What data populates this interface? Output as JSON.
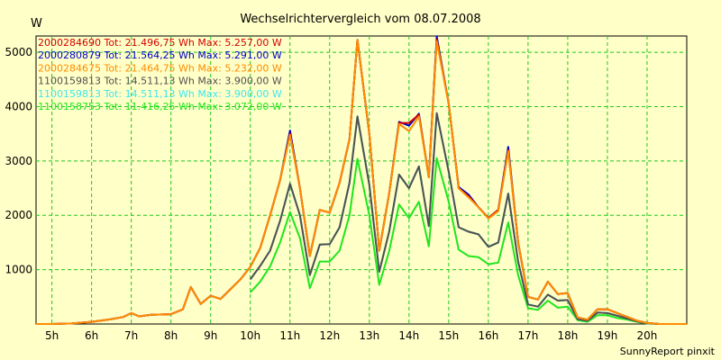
{
  "chart_data": {
    "type": "line",
    "title": "Wechselrichtervergleich vom 08.07.2008",
    "ylabel": "W",
    "xlabel": "",
    "footer": "SunnyReport pinxit",
    "x_tick_labels": [
      "5h",
      "6h",
      "7h",
      "8h",
      "9h",
      "10h",
      "11h",
      "12h",
      "13h",
      "14h",
      "15h",
      "16h",
      "17h",
      "18h",
      "19h",
      "20h"
    ],
    "xlim": [
      4.6,
      21.0
    ],
    "ylim": [
      0,
      5300
    ],
    "y_ticks": [
      1000,
      2000,
      3000,
      4000,
      5000
    ],
    "grid": true,
    "legend_position": "top-left",
    "series": [
      {
        "name": "2000284690 Tot: 21.496,75 Wh Max: 5.257,00 W",
        "color": "#d40000",
        "points": [
          [
            4.6,
            0
          ],
          [
            5.0,
            0
          ],
          [
            5.5,
            10
          ],
          [
            6.0,
            40
          ],
          [
            6.5,
            90
          ],
          [
            6.8,
            130
          ],
          [
            7.0,
            200
          ],
          [
            7.2,
            140
          ],
          [
            7.5,
            170
          ],
          [
            8.0,
            180
          ],
          [
            8.3,
            270
          ],
          [
            8.5,
            680
          ],
          [
            8.75,
            370
          ],
          [
            9.0,
            520
          ],
          [
            9.25,
            460
          ],
          [
            9.5,
            640
          ],
          [
            9.75,
            820
          ],
          [
            10.0,
            1050
          ],
          [
            10.25,
            1400
          ],
          [
            10.5,
            2000
          ],
          [
            10.75,
            2650
          ],
          [
            11.0,
            3500
          ],
          [
            11.25,
            2500
          ],
          [
            11.5,
            1250
          ],
          [
            11.75,
            2100
          ],
          [
            12.0,
            2050
          ],
          [
            12.25,
            2600
          ],
          [
            12.5,
            3400
          ],
          [
            12.7,
            5230
          ],
          [
            13.0,
            3500
          ],
          [
            13.25,
            1350
          ],
          [
            13.5,
            2400
          ],
          [
            13.75,
            3700
          ],
          [
            14.0,
            3700
          ],
          [
            14.25,
            3850
          ],
          [
            14.5,
            2700
          ],
          [
            14.7,
            5240
          ],
          [
            15.0,
            4050
          ],
          [
            15.25,
            2500
          ],
          [
            15.5,
            2350
          ],
          [
            15.75,
            2150
          ],
          [
            16.0,
            1950
          ],
          [
            16.25,
            2100
          ],
          [
            16.5,
            3200
          ],
          [
            16.75,
            1500
          ],
          [
            17.0,
            500
          ],
          [
            17.25,
            450
          ],
          [
            17.5,
            780
          ],
          [
            17.75,
            550
          ],
          [
            18.0,
            570
          ],
          [
            18.25,
            120
          ],
          [
            18.5,
            80
          ],
          [
            18.75,
            270
          ],
          [
            19.0,
            270
          ],
          [
            19.25,
            200
          ],
          [
            19.5,
            130
          ],
          [
            19.75,
            60
          ],
          [
            20.0,
            20
          ],
          [
            20.3,
            0
          ],
          [
            21.0,
            0
          ]
        ]
      },
      {
        "name": "2000280879 Tot: 21.564,25 Wh Max: 5.291,00 W",
        "color": "#0000c8",
        "points": [
          [
            4.6,
            0
          ],
          [
            5.0,
            0
          ],
          [
            5.5,
            10
          ],
          [
            6.0,
            40
          ],
          [
            6.5,
            90
          ],
          [
            6.8,
            130
          ],
          [
            7.0,
            200
          ],
          [
            7.2,
            140
          ],
          [
            7.5,
            170
          ],
          [
            8.0,
            180
          ],
          [
            8.3,
            270
          ],
          [
            8.5,
            680
          ],
          [
            8.75,
            370
          ],
          [
            9.0,
            520
          ],
          [
            9.25,
            460
          ],
          [
            9.5,
            640
          ],
          [
            9.75,
            820
          ],
          [
            10.0,
            1050
          ],
          [
            10.25,
            1400
          ],
          [
            10.5,
            2000
          ],
          [
            10.75,
            2650
          ],
          [
            11.0,
            3560
          ],
          [
            11.25,
            2500
          ],
          [
            11.5,
            1250
          ],
          [
            11.75,
            2100
          ],
          [
            12.0,
            2050
          ],
          [
            12.25,
            2600
          ],
          [
            12.5,
            3400
          ],
          [
            12.7,
            5230
          ],
          [
            13.0,
            3500
          ],
          [
            13.25,
            1350
          ],
          [
            13.5,
            2400
          ],
          [
            13.75,
            3720
          ],
          [
            14.0,
            3650
          ],
          [
            14.25,
            3870
          ],
          [
            14.5,
            2700
          ],
          [
            14.7,
            5290
          ],
          [
            15.0,
            4050
          ],
          [
            15.25,
            2520
          ],
          [
            15.5,
            2380
          ],
          [
            15.75,
            2150
          ],
          [
            16.0,
            1950
          ],
          [
            16.25,
            2100
          ],
          [
            16.5,
            3260
          ],
          [
            16.75,
            1500
          ],
          [
            17.0,
            500
          ],
          [
            17.25,
            450
          ],
          [
            17.5,
            780
          ],
          [
            17.75,
            550
          ],
          [
            18.0,
            570
          ],
          [
            18.25,
            120
          ],
          [
            18.5,
            80
          ],
          [
            18.75,
            270
          ],
          [
            19.0,
            270
          ],
          [
            19.25,
            200
          ],
          [
            19.5,
            130
          ],
          [
            19.75,
            60
          ],
          [
            20.0,
            20
          ],
          [
            20.3,
            0
          ],
          [
            21.0,
            0
          ]
        ]
      },
      {
        "name": "2000284675 Tot: 21.464,75 Wh Max: 5.232,00 W",
        "color": "#ff8c00",
        "points": [
          [
            4.6,
            0
          ],
          [
            5.0,
            0
          ],
          [
            5.5,
            10
          ],
          [
            6.0,
            40
          ],
          [
            6.5,
            90
          ],
          [
            6.8,
            130
          ],
          [
            7.0,
            200
          ],
          [
            7.2,
            140
          ],
          [
            7.5,
            170
          ],
          [
            8.0,
            180
          ],
          [
            8.3,
            270
          ],
          [
            8.5,
            680
          ],
          [
            8.75,
            370
          ],
          [
            9.0,
            520
          ],
          [
            9.25,
            460
          ],
          [
            9.5,
            640
          ],
          [
            9.75,
            820
          ],
          [
            10.0,
            1050
          ],
          [
            10.25,
            1400
          ],
          [
            10.5,
            2000
          ],
          [
            10.75,
            2650
          ],
          [
            11.0,
            3480
          ],
          [
            11.25,
            2500
          ],
          [
            11.5,
            1250
          ],
          [
            11.75,
            2100
          ],
          [
            12.0,
            2050
          ],
          [
            12.25,
            2600
          ],
          [
            12.5,
            3400
          ],
          [
            12.7,
            5232
          ],
          [
            13.0,
            3500
          ],
          [
            13.25,
            1350
          ],
          [
            13.5,
            2400
          ],
          [
            13.75,
            3680
          ],
          [
            14.0,
            3550
          ],
          [
            14.25,
            3820
          ],
          [
            14.5,
            2700
          ],
          [
            14.7,
            5200
          ],
          [
            15.0,
            4050
          ],
          [
            15.25,
            2500
          ],
          [
            15.5,
            2330
          ],
          [
            15.75,
            2150
          ],
          [
            16.0,
            1940
          ],
          [
            16.25,
            2080
          ],
          [
            16.5,
            3180
          ],
          [
            16.75,
            1500
          ],
          [
            17.0,
            500
          ],
          [
            17.25,
            450
          ],
          [
            17.5,
            780
          ],
          [
            17.75,
            550
          ],
          [
            18.0,
            570
          ],
          [
            18.25,
            120
          ],
          [
            18.5,
            80
          ],
          [
            18.75,
            270
          ],
          [
            19.0,
            270
          ],
          [
            19.25,
            200
          ],
          [
            19.5,
            130
          ],
          [
            19.75,
            60
          ],
          [
            20.0,
            20
          ],
          [
            20.3,
            0
          ],
          [
            21.0,
            0
          ]
        ]
      },
      {
        "name": "1100159813 Tot: 14.511,13 Wh Max: 3.900,00 W",
        "color": "#505050",
        "points": [
          [
            10.0,
            820
          ],
          [
            10.25,
            1070
          ],
          [
            10.5,
            1350
          ],
          [
            10.75,
            1900
          ],
          [
            11.0,
            2580
          ],
          [
            11.25,
            2000
          ],
          [
            11.5,
            900
          ],
          [
            11.75,
            1460
          ],
          [
            12.0,
            1470
          ],
          [
            12.25,
            1780
          ],
          [
            12.5,
            2600
          ],
          [
            12.7,
            3820
          ],
          [
            13.0,
            2560
          ],
          [
            13.25,
            960
          ],
          [
            13.5,
            1700
          ],
          [
            13.75,
            2750
          ],
          [
            14.0,
            2500
          ],
          [
            14.25,
            2900
          ],
          [
            14.5,
            1800
          ],
          [
            14.7,
            3880
          ],
          [
            15.0,
            2800
          ],
          [
            15.25,
            1780
          ],
          [
            15.5,
            1700
          ],
          [
            15.75,
            1650
          ],
          [
            16.0,
            1420
          ],
          [
            16.25,
            1500
          ],
          [
            16.5,
            2400
          ],
          [
            16.75,
            1150
          ],
          [
            17.0,
            360
          ],
          [
            17.25,
            320
          ],
          [
            17.5,
            540
          ],
          [
            17.75,
            430
          ],
          [
            18.0,
            440
          ],
          [
            18.25,
            90
          ],
          [
            18.5,
            60
          ],
          [
            18.75,
            210
          ],
          [
            19.0,
            200
          ],
          [
            19.25,
            150
          ],
          [
            19.5,
            100
          ],
          [
            19.75,
            50
          ],
          [
            20.0,
            15
          ],
          [
            20.3,
            0
          ]
        ]
      },
      {
        "name": "1100159813 Tot: 14.511,13 Wh Max: 3.900,00 W",
        "color": "#3ce6f0",
        "points": [
          [
            10.0,
            820
          ],
          [
            10.25,
            1070
          ],
          [
            10.5,
            1350
          ],
          [
            10.75,
            1900
          ],
          [
            11.0,
            2580
          ],
          [
            11.25,
            2000
          ],
          [
            11.5,
            900
          ],
          [
            11.75,
            1460
          ],
          [
            12.0,
            1470
          ],
          [
            12.25,
            1780
          ],
          [
            12.5,
            2600
          ],
          [
            12.7,
            3820
          ],
          [
            13.0,
            2560
          ],
          [
            13.25,
            960
          ],
          [
            13.5,
            1700
          ],
          [
            13.75,
            2750
          ],
          [
            14.0,
            2500
          ],
          [
            14.25,
            2900
          ],
          [
            14.5,
            1800
          ],
          [
            14.7,
            3880
          ],
          [
            15.0,
            2800
          ],
          [
            15.25,
            1780
          ],
          [
            15.5,
            1700
          ],
          [
            15.75,
            1650
          ],
          [
            16.0,
            1420
          ],
          [
            16.25,
            1500
          ],
          [
            16.5,
            2400
          ],
          [
            16.75,
            1150
          ],
          [
            17.0,
            360
          ],
          [
            17.25,
            320
          ],
          [
            17.5,
            540
          ],
          [
            17.75,
            430
          ],
          [
            18.0,
            440
          ],
          [
            18.25,
            90
          ],
          [
            18.5,
            60
          ],
          [
            18.75,
            210
          ],
          [
            19.0,
            200
          ],
          [
            19.25,
            150
          ],
          [
            19.5,
            100
          ],
          [
            19.75,
            50
          ],
          [
            20.0,
            15
          ],
          [
            20.3,
            0
          ]
        ]
      },
      {
        "name": "1100158753 Tot: 11.416,25 Wh Max: 3.072,00 W",
        "color": "#1ee61e",
        "points": [
          [
            10.0,
            580
          ],
          [
            10.25,
            780
          ],
          [
            10.5,
            1060
          ],
          [
            10.75,
            1500
          ],
          [
            11.0,
            2060
          ],
          [
            11.25,
            1580
          ],
          [
            11.5,
            660
          ],
          [
            11.75,
            1150
          ],
          [
            12.0,
            1150
          ],
          [
            12.25,
            1350
          ],
          [
            12.5,
            2000
          ],
          [
            12.7,
            3040
          ],
          [
            13.0,
            2000
          ],
          [
            13.25,
            720
          ],
          [
            13.5,
            1340
          ],
          [
            13.75,
            2200
          ],
          [
            14.0,
            1950
          ],
          [
            14.25,
            2250
          ],
          [
            14.5,
            1430
          ],
          [
            14.7,
            3050
          ],
          [
            15.0,
            2250
          ],
          [
            15.25,
            1370
          ],
          [
            15.5,
            1250
          ],
          [
            15.75,
            1230
          ],
          [
            16.0,
            1100
          ],
          [
            16.25,
            1130
          ],
          [
            16.5,
            1870
          ],
          [
            16.75,
            900
          ],
          [
            17.0,
            290
          ],
          [
            17.25,
            260
          ],
          [
            17.5,
            430
          ],
          [
            17.75,
            300
          ],
          [
            18.0,
            320
          ],
          [
            18.25,
            70
          ],
          [
            18.5,
            40
          ],
          [
            18.75,
            160
          ],
          [
            19.0,
            160
          ],
          [
            19.25,
            110
          ],
          [
            19.5,
            80
          ],
          [
            19.75,
            40
          ],
          [
            20.0,
            10
          ],
          [
            20.3,
            0
          ]
        ]
      }
    ]
  }
}
